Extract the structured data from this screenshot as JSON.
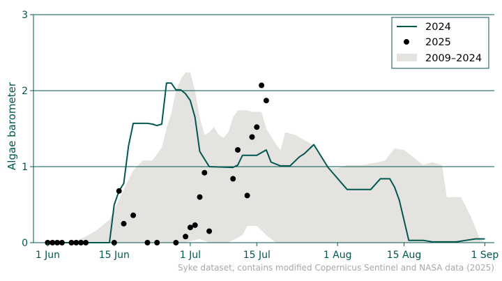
{
  "chart_data": {
    "type": "line",
    "ylabel": "Algae barometer",
    "ylim": [
      0,
      3
    ],
    "yticks": [
      0,
      1,
      2,
      3
    ],
    "xticks": [
      {
        "label": "1 Jun",
        "date": "2025-06-01"
      },
      {
        "label": "15 Jun",
        "date": "2025-06-15"
      },
      {
        "label": "1 Jul",
        "date": "2025-07-01"
      },
      {
        "label": "15 Jul",
        "date": "2025-07-15"
      },
      {
        "label": "1 Aug",
        "date": "2025-08-01"
      },
      {
        "label": "15 Aug",
        "date": "2025-08-15"
      },
      {
        "label": "1 Sep",
        "date": "2025-09-01"
      }
    ],
    "xlim": [
      "2025-05-29",
      "2025-09-03"
    ],
    "grid": "horizontal",
    "legend_position": "top-right",
    "source": "Syke dataset, contains modified Copernicus Sentinel and NASA data (2025)",
    "colors": {
      "line": "#00574f",
      "dots": "#000000",
      "band": "#e4e3df",
      "axis": "#00574f"
    },
    "series": [
      {
        "name": "2024",
        "kind": "line",
        "points": [
          [
            "2025-06-01",
            0.0
          ],
          [
            "2025-06-06",
            0.0
          ],
          [
            "2025-06-10",
            0.0
          ],
          [
            "2025-06-14",
            0.0
          ],
          [
            "2025-06-15",
            0.5
          ],
          [
            "2025-06-16",
            0.68
          ],
          [
            "2025-06-17",
            0.78
          ],
          [
            "2025-06-18",
            1.27
          ],
          [
            "2025-06-19",
            1.57
          ],
          [
            "2025-06-22",
            1.57
          ],
          [
            "2025-06-23",
            1.56
          ],
          [
            "2025-06-24",
            1.54
          ],
          [
            "2025-06-25",
            1.56
          ],
          [
            "2025-06-26",
            2.1
          ],
          [
            "2025-06-27",
            2.1
          ],
          [
            "2025-06-28",
            2.01
          ],
          [
            "2025-06-29",
            2.01
          ],
          [
            "2025-06-30",
            1.96
          ],
          [
            "2025-07-01",
            1.87
          ],
          [
            "2025-07-02",
            1.65
          ],
          [
            "2025-07-03",
            1.2
          ],
          [
            "2025-07-04",
            1.1
          ],
          [
            "2025-07-05",
            1.0
          ],
          [
            "2025-07-10",
            0.99
          ],
          [
            "2025-07-11",
            1.02
          ],
          [
            "2025-07-12",
            1.15
          ],
          [
            "2025-07-14",
            1.15
          ],
          [
            "2025-07-15",
            1.15
          ],
          [
            "2025-07-17",
            1.22
          ],
          [
            "2025-07-18",
            1.06
          ],
          [
            "2025-07-20",
            1.01
          ],
          [
            "2025-07-22",
            1.01
          ],
          [
            "2025-07-24",
            1.13
          ],
          [
            "2025-07-25",
            1.17
          ],
          [
            "2025-07-27",
            1.29
          ],
          [
            "2025-07-30",
            0.99
          ],
          [
            "2025-08-03",
            0.7
          ],
          [
            "2025-08-08",
            0.7
          ],
          [
            "2025-08-10",
            0.84
          ],
          [
            "2025-08-12",
            0.84
          ],
          [
            "2025-08-13",
            0.73
          ],
          [
            "2025-08-14",
            0.56
          ],
          [
            "2025-08-16",
            0.03
          ],
          [
            "2025-08-19",
            0.03
          ],
          [
            "2025-08-21",
            0.01
          ],
          [
            "2025-08-26",
            0.01
          ],
          [
            "2025-08-28",
            0.03
          ],
          [
            "2025-08-30",
            0.05
          ],
          [
            "2025-09-01",
            0.05
          ]
        ]
      },
      {
        "name": "2025",
        "kind": "scatter",
        "points": [
          [
            "2025-06-01",
            0.0
          ],
          [
            "2025-06-02",
            0.0
          ],
          [
            "2025-06-03",
            0.0
          ],
          [
            "2025-06-04",
            0.0
          ],
          [
            "2025-06-06",
            0.0
          ],
          [
            "2025-06-07",
            0.0
          ],
          [
            "2025-06-08",
            0.0
          ],
          [
            "2025-06-09",
            0.0
          ],
          [
            "2025-06-15",
            0.0
          ],
          [
            "2025-06-16",
            0.68
          ],
          [
            "2025-06-17",
            0.25
          ],
          [
            "2025-06-19",
            0.36
          ],
          [
            "2025-06-22",
            0.0
          ],
          [
            "2025-06-24",
            0.0
          ],
          [
            "2025-06-28",
            0.0
          ],
          [
            "2025-06-30",
            0.08
          ],
          [
            "2025-07-01",
            0.2
          ],
          [
            "2025-07-02",
            0.23
          ],
          [
            "2025-07-03",
            0.6
          ],
          [
            "2025-07-04",
            0.92
          ],
          [
            "2025-07-05",
            0.15
          ],
          [
            "2025-07-10",
            0.84
          ],
          [
            "2025-07-11",
            1.22
          ],
          [
            "2025-07-13",
            0.62
          ],
          [
            "2025-07-14",
            1.39
          ],
          [
            "2025-07-15",
            1.52
          ],
          [
            "2025-07-16",
            2.07
          ],
          [
            "2025-07-17",
            1.87
          ]
        ]
      },
      {
        "name": "2009–2024",
        "kind": "band",
        "upper": [
          [
            "2025-06-05",
            0.0
          ],
          [
            "2025-06-08",
            0.05
          ],
          [
            "2025-06-11",
            0.15
          ],
          [
            "2025-06-14",
            0.3
          ],
          [
            "2025-06-17",
            0.7
          ],
          [
            "2025-06-19",
            0.95
          ],
          [
            "2025-06-21",
            1.08
          ],
          [
            "2025-06-23",
            1.08
          ],
          [
            "2025-06-25",
            1.25
          ],
          [
            "2025-06-26",
            1.5
          ],
          [
            "2025-06-27",
            1.7
          ],
          [
            "2025-06-28",
            2.0
          ],
          [
            "2025-06-29",
            2.15
          ],
          [
            "2025-06-30",
            2.24
          ],
          [
            "2025-07-01",
            2.24
          ],
          [
            "2025-07-02",
            2.0
          ],
          [
            "2025-07-03",
            1.65
          ],
          [
            "2025-07-04",
            1.42
          ],
          [
            "2025-07-05",
            1.45
          ],
          [
            "2025-07-06",
            1.52
          ],
          [
            "2025-07-07",
            1.42
          ],
          [
            "2025-07-08",
            1.38
          ],
          [
            "2025-07-09",
            1.45
          ],
          [
            "2025-07-10",
            1.65
          ],
          [
            "2025-07-11",
            1.74
          ],
          [
            "2025-07-13",
            1.74
          ],
          [
            "2025-07-14",
            1.72
          ],
          [
            "2025-07-16",
            1.72
          ],
          [
            "2025-07-17",
            1.5
          ],
          [
            "2025-07-19",
            1.3
          ],
          [
            "2025-07-20",
            1.22
          ],
          [
            "2025-07-21",
            1.45
          ],
          [
            "2025-07-23",
            1.42
          ],
          [
            "2025-07-25",
            1.35
          ],
          [
            "2025-07-27",
            1.28
          ],
          [
            "2025-07-29",
            1.08
          ],
          [
            "2025-07-30",
            0.98
          ],
          [
            "2025-08-01",
            0.98
          ],
          [
            "2025-08-03",
            1.02
          ],
          [
            "2025-08-06",
            1.02
          ],
          [
            "2025-08-09",
            1.05
          ],
          [
            "2025-08-11",
            1.08
          ],
          [
            "2025-08-13",
            1.24
          ],
          [
            "2025-08-15",
            1.22
          ],
          [
            "2025-08-17",
            1.12
          ],
          [
            "2025-08-19",
            1.02
          ],
          [
            "2025-08-21",
            1.06
          ],
          [
            "2025-08-23",
            1.02
          ],
          [
            "2025-08-24",
            0.6
          ],
          [
            "2025-08-27",
            0.6
          ],
          [
            "2025-08-29",
            0.35
          ],
          [
            "2025-08-31",
            0.05
          ],
          [
            "2025-09-01",
            0.0
          ]
        ],
        "lower": [
          [
            "2025-06-05",
            0.0
          ],
          [
            "2025-06-30",
            0.0
          ],
          [
            "2025-07-03",
            0.05
          ],
          [
            "2025-07-05",
            0.0
          ],
          [
            "2025-07-09",
            0.0
          ],
          [
            "2025-07-12",
            0.1
          ],
          [
            "2025-07-13",
            0.22
          ],
          [
            "2025-07-15",
            0.22
          ],
          [
            "2025-07-17",
            0.1
          ],
          [
            "2025-07-19",
            0.0
          ],
          [
            "2025-09-01",
            0.0
          ]
        ]
      }
    ]
  }
}
